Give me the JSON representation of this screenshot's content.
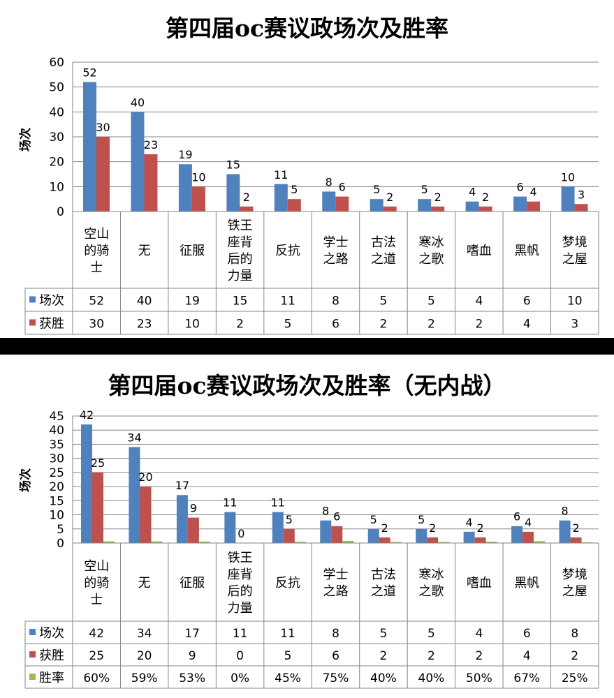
{
  "chart_data": [
    {
      "type": "bar",
      "title": "第四届oc赛议政场次及胜率",
      "ylabel": "场次",
      "ylim": [
        0,
        60
      ],
      "yticks": [
        0,
        10,
        20,
        30,
        40,
        50,
        60
      ],
      "grid": true,
      "legend": "data-table",
      "categories": [
        "空山的骑士",
        "无",
        "征服",
        "铁王座背后的力量",
        "反抗",
        "学士之路",
        "古法之道",
        "寒冰之歌",
        "嗜血",
        "黑帆",
        "梦境之屋"
      ],
      "category_lines": [
        [
          "空山",
          "的骑",
          "士"
        ],
        [
          "无"
        ],
        [
          "征服"
        ],
        [
          "铁王",
          "座背",
          "后的",
          "力量"
        ],
        [
          "反抗"
        ],
        [
          "学士",
          "之路"
        ],
        [
          "古法",
          "之道"
        ],
        [
          "寒冰",
          "之歌"
        ],
        [
          "嗜血"
        ],
        [
          "黑帆"
        ],
        [
          "梦境",
          "之屋"
        ]
      ],
      "series": [
        {
          "name": "场次",
          "color": "#4F81BD",
          "values": [
            52,
            40,
            19,
            15,
            11,
            8,
            5,
            5,
            4,
            6,
            10
          ]
        },
        {
          "name": "获胜",
          "color": "#C0504D",
          "values": [
            30,
            23,
            10,
            2,
            5,
            6,
            2,
            2,
            2,
            4,
            3
          ]
        }
      ]
    },
    {
      "type": "bar",
      "title": "第四届oc赛议政场次及胜率（无内战）",
      "ylabel": "场次",
      "ylim": [
        0,
        45
      ],
      "yticks": [
        0,
        5,
        10,
        15,
        20,
        25,
        30,
        35,
        40,
        45
      ],
      "grid": true,
      "legend": "data-table",
      "categories": [
        "空山的骑士",
        "无",
        "征服",
        "铁王座背后的力量",
        "反抗",
        "学士之路",
        "古法之道",
        "寒冰之歌",
        "嗜血",
        "黑帆",
        "梦境之屋"
      ],
      "category_lines": [
        [
          "空山",
          "的骑",
          "士"
        ],
        [
          "无"
        ],
        [
          "征服"
        ],
        [
          "铁王",
          "座背",
          "后的",
          "力量"
        ],
        [
          "反抗"
        ],
        [
          "学士",
          "之路"
        ],
        [
          "古法",
          "之道"
        ],
        [
          "寒冰",
          "之歌"
        ],
        [
          "嗜血"
        ],
        [
          "黑帆"
        ],
        [
          "梦境",
          "之屋"
        ]
      ],
      "series": [
        {
          "name": "场次",
          "color": "#4F81BD",
          "values": [
            42,
            34,
            17,
            11,
            11,
            8,
            5,
            5,
            4,
            6,
            8
          ]
        },
        {
          "name": "获胜",
          "color": "#C0504D",
          "values": [
            25,
            20,
            9,
            0,
            5,
            6,
            2,
            2,
            2,
            4,
            2
          ]
        },
        {
          "name": "胜率",
          "color": "#9BBB59",
          "values": [
            0.6,
            0.59,
            0.53,
            0,
            0.45,
            0.75,
            0.4,
            0.4,
            0.5,
            0.67,
            0.25
          ],
          "labels": [
            "60%",
            "59%",
            "53%",
            "0%",
            "45%",
            "75%",
            "40%",
            "40%",
            "50%",
            "67%",
            "25%"
          ]
        }
      ]
    }
  ]
}
